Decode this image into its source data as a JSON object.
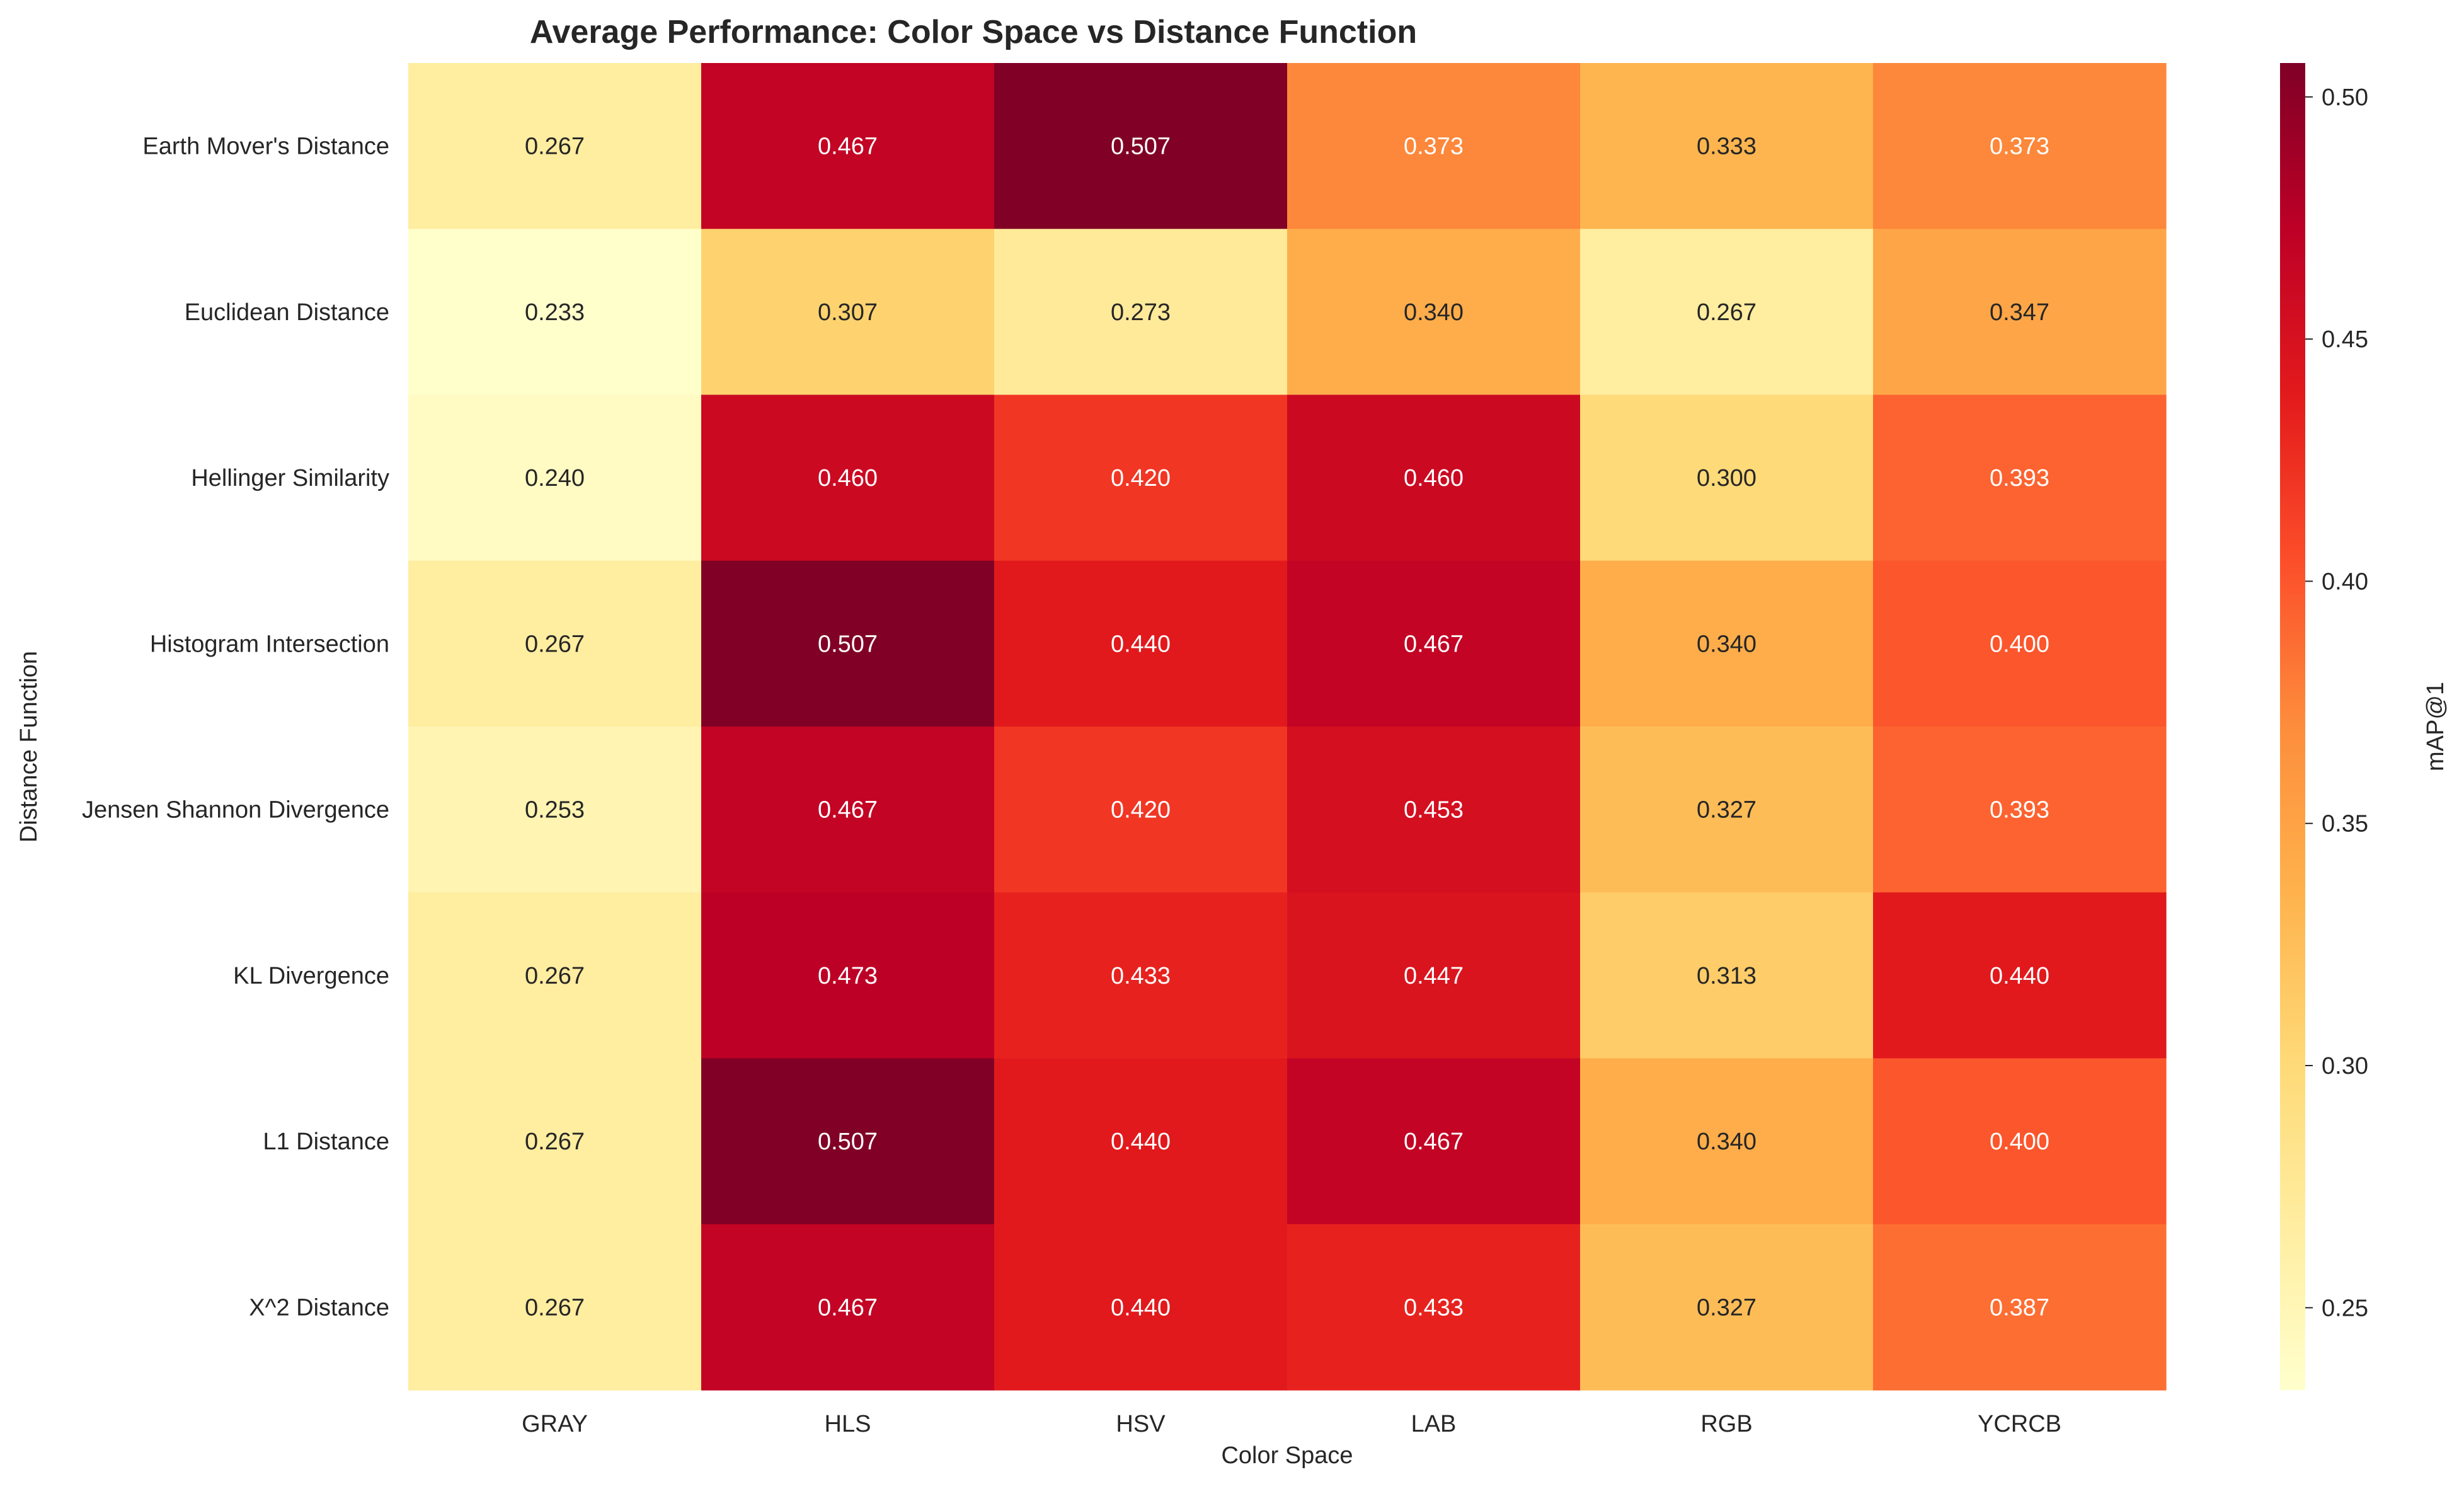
{
  "chart_data": {
    "type": "heatmap",
    "title": "Average Performance: Color Space vs Distance Function",
    "xlabel": "Color Space",
    "ylabel": "Distance Function",
    "x_categories": [
      "GRAY",
      "HLS",
      "HSV",
      "LAB",
      "RGB",
      "YCRCB"
    ],
    "y_categories": [
      "Earth Mover's Distance",
      "Euclidean Distance",
      "Hellinger Similarity",
      "Histogram Intersection",
      "Jensen Shannon Divergence",
      "KL Divergence",
      "L1 Distance",
      "X^2 Distance"
    ],
    "values": [
      [
        0.267,
        0.467,
        0.507,
        0.373,
        0.333,
        0.373
      ],
      [
        0.233,
        0.307,
        0.273,
        0.34,
        0.267,
        0.347
      ],
      [
        0.24,
        0.46,
        0.42,
        0.46,
        0.3,
        0.393
      ],
      [
        0.267,
        0.507,
        0.44,
        0.467,
        0.34,
        0.4
      ],
      [
        0.253,
        0.467,
        0.42,
        0.453,
        0.327,
        0.393
      ],
      [
        0.267,
        0.473,
        0.433,
        0.447,
        0.313,
        0.44
      ],
      [
        0.267,
        0.507,
        0.44,
        0.467,
        0.34,
        0.4
      ],
      [
        0.267,
        0.467,
        0.44,
        0.433,
        0.327,
        0.387
      ]
    ],
    "value_labels": [
      [
        "0.267",
        "0.467",
        "0.507",
        "0.373",
        "0.333",
        "0.373"
      ],
      [
        "0.233",
        "0.307",
        "0.273",
        "0.340",
        "0.267",
        "0.347"
      ],
      [
        "0.240",
        "0.460",
        "0.420",
        "0.460",
        "0.300",
        "0.393"
      ],
      [
        "0.267",
        "0.507",
        "0.440",
        "0.467",
        "0.340",
        "0.400"
      ],
      [
        "0.253",
        "0.467",
        "0.420",
        "0.453",
        "0.327",
        "0.393"
      ],
      [
        "0.267",
        "0.473",
        "0.433",
        "0.447",
        "0.313",
        "0.440"
      ],
      [
        "0.267",
        "0.507",
        "0.440",
        "0.467",
        "0.340",
        "0.400"
      ],
      [
        "0.267",
        "0.467",
        "0.440",
        "0.433",
        "0.327",
        "0.387"
      ]
    ],
    "colormap": "YlOrRd",
    "vmin": 0.233,
    "vmax": 0.507,
    "colorbar": {
      "label": "mAP@1",
      "ticks": [
        0.25,
        0.3,
        0.35,
        0.4,
        0.45,
        0.5
      ],
      "tick_labels": [
        "0.25",
        "0.30",
        "0.35",
        "0.40",
        "0.45",
        "0.50"
      ],
      "placement": "right"
    },
    "grid": false
  },
  "colors": {
    "ylorrd_stops": [
      "#ffffcc",
      "#ffeda0",
      "#fed976",
      "#feb24c",
      "#fd8d3c",
      "#fc4e2a",
      "#e31a1c",
      "#bd0026",
      "#800026"
    ],
    "text_dark": "#262626",
    "text_light": "#ffffff",
    "background": "#ffffff"
  }
}
